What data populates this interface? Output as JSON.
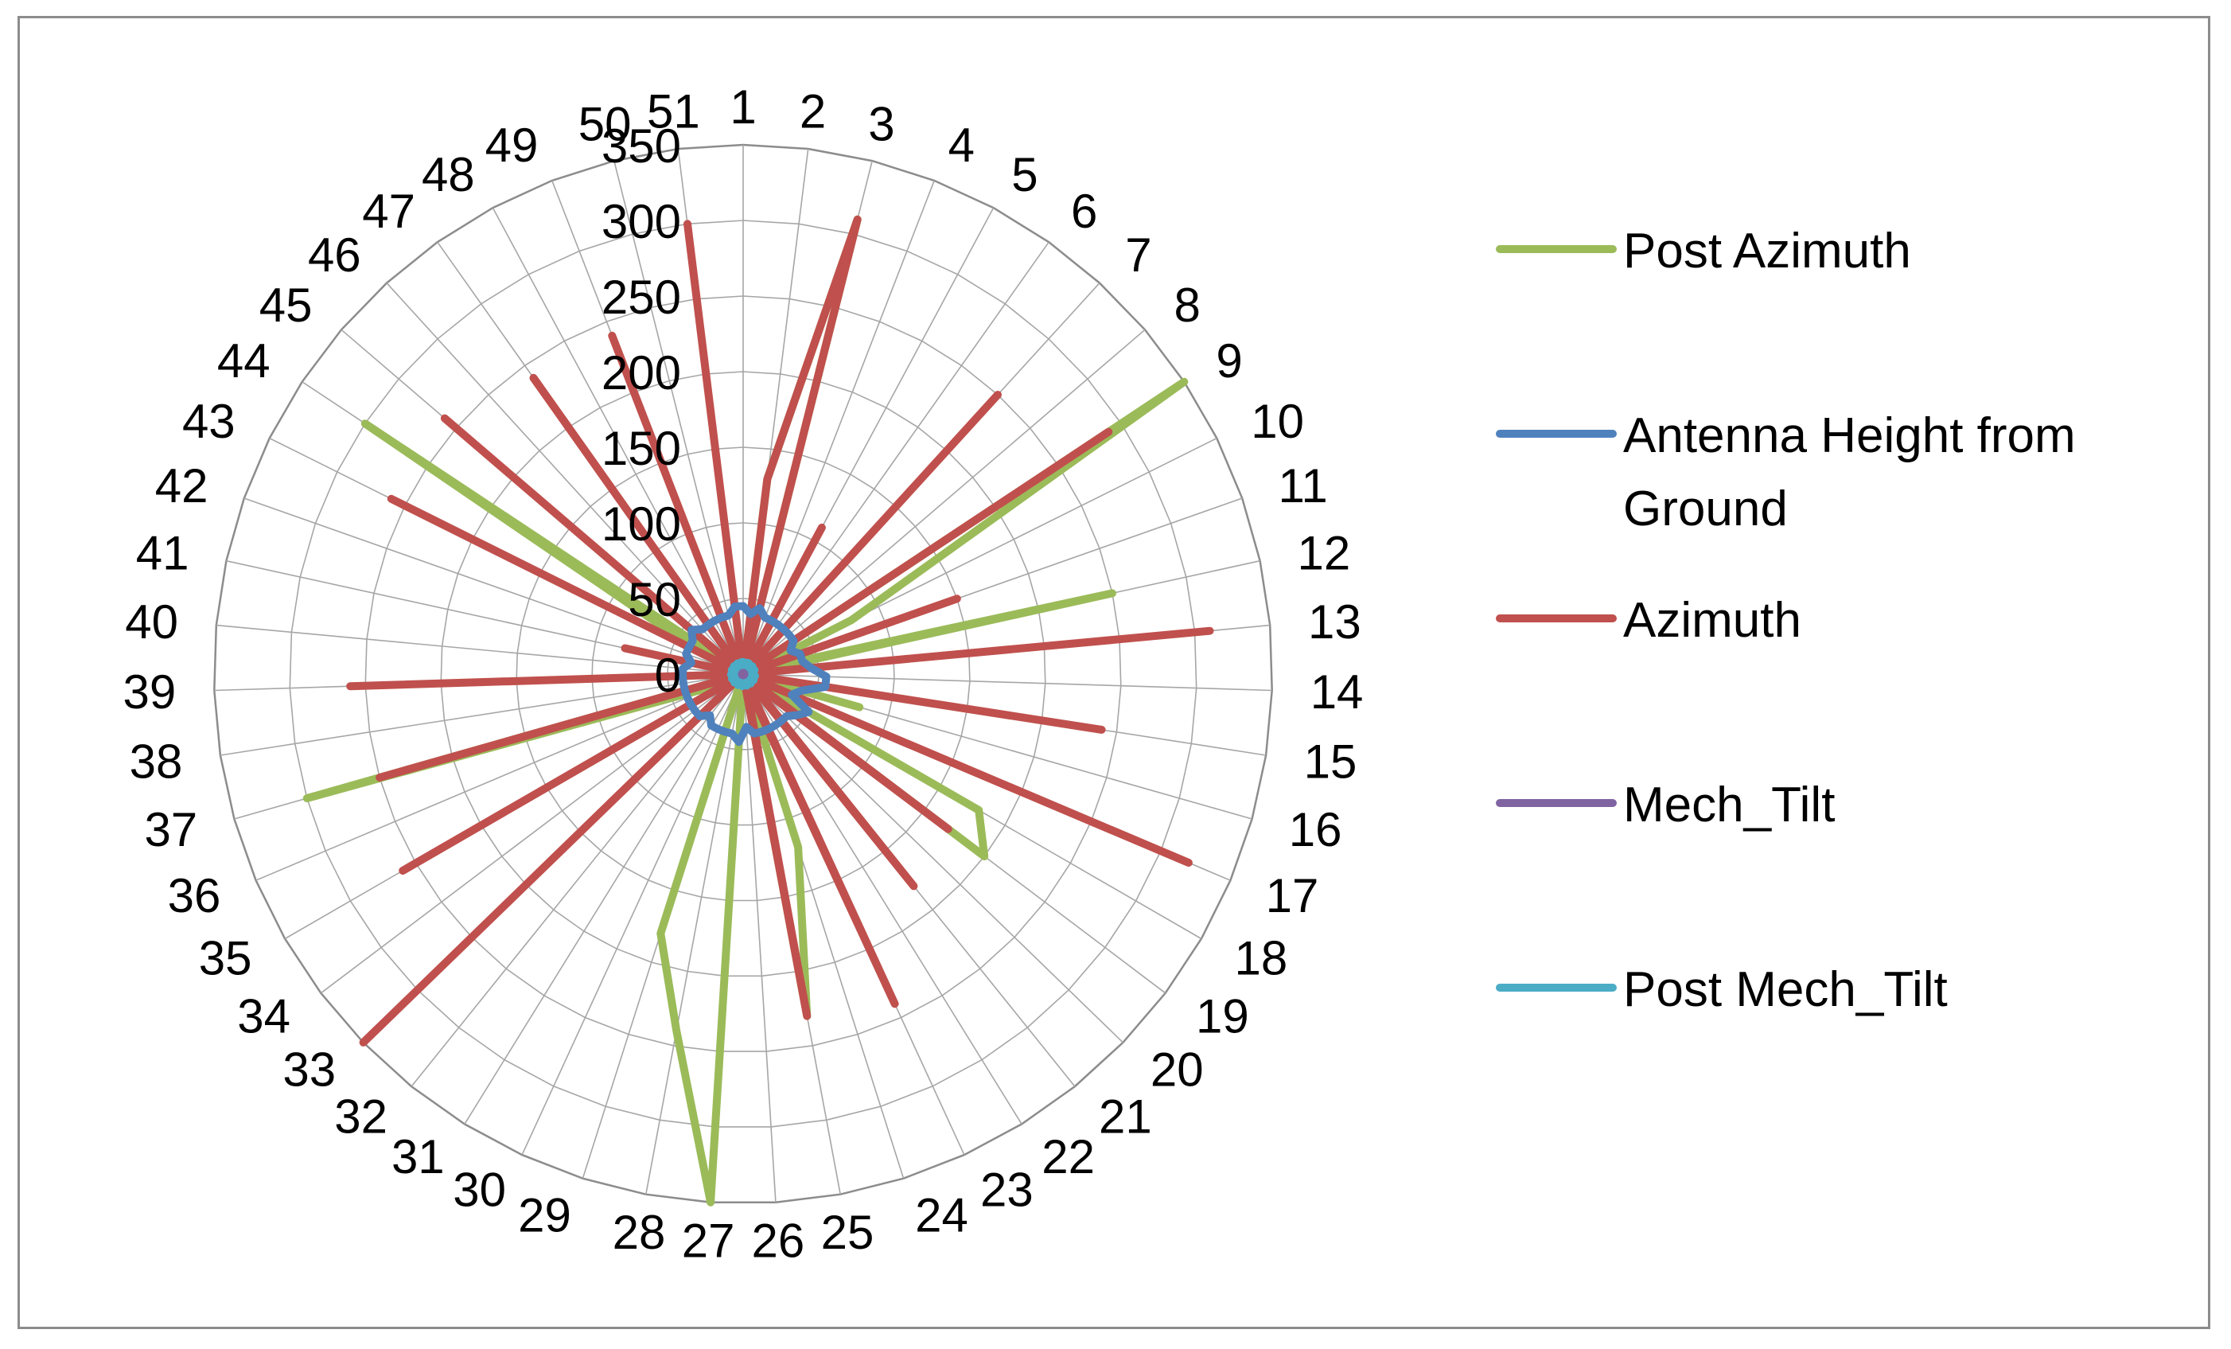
{
  "chart_data": {
    "type": "radar",
    "title": "",
    "categories": [
      "1",
      "2",
      "3",
      "4",
      "5",
      "6",
      "7",
      "8",
      "9",
      "10",
      "11",
      "12",
      "13",
      "14",
      "15",
      "16",
      "17",
      "18",
      "19",
      "20",
      "21",
      "22",
      "23",
      "24",
      "25",
      "26",
      "27",
      "28",
      "29",
      "30",
      "31",
      "32",
      "33",
      "34",
      "35",
      "36",
      "37",
      "38",
      "39",
      "40",
      "41",
      "42",
      "43",
      "44",
      "45",
      "46",
      "47",
      "48",
      "49",
      "50",
      "51"
    ],
    "radial_ticks": [
      0,
      50,
      100,
      150,
      200,
      250,
      300,
      350
    ],
    "rlim": [
      0,
      350
    ],
    "grid": true,
    "legend_position": "right",
    "series": [
      {
        "name": "Post Azimuth",
        "color": "#9bbb59",
        "values": [
          0,
          130,
          310,
          0,
          0,
          0,
          0,
          0,
          350,
          80,
          5,
          250,
          5,
          0,
          0,
          80,
          0,
          180,
          200,
          0,
          0,
          0,
          0,
          120,
          230,
          0,
          350,
          240,
          180,
          0,
          0,
          10,
          0,
          0,
          0,
          20,
          300,
          0,
          0,
          0,
          0,
          0,
          30,
          300,
          0,
          0,
          0,
          0,
          0,
          0,
          0
        ]
      },
      {
        "name": "Antenna Height from Ground",
        "color": "#4f81bd",
        "values": [
          45,
          40,
          45,
          40,
          40,
          40,
          40,
          40,
          40,
          35,
          40,
          40,
          45,
          55,
          55,
          40,
          35,
          50,
          45,
          40,
          40,
          40,
          40,
          40,
          40,
          35,
          45,
          40,
          40,
          40,
          40,
          35,
          40,
          40,
          40,
          40,
          40,
          40,
          40,
          40,
          35,
          40,
          40,
          40,
          45,
          40,
          40,
          40,
          40,
          40,
          45
        ]
      },
      {
        "name": "Azimuth",
        "color": "#c0504d",
        "values": [
          0,
          130,
          310,
          0,
          110,
          0,
          250,
          0,
          290,
          0,
          150,
          0,
          310,
          0,
          240,
          0,
          320,
          0,
          170,
          5,
          180,
          0,
          240,
          5,
          230,
          0,
          0,
          0,
          0,
          0,
          0,
          0,
          350,
          0,
          260,
          0,
          250,
          0,
          260,
          0,
          80,
          0,
          260,
          0,
          260,
          0,
          240,
          0,
          240,
          0,
          300
        ]
      },
      {
        "name": "Mech_Tilt",
        "color": "#8064a2",
        "values": [
          5,
          3,
          4,
          5,
          5,
          3,
          4,
          5,
          4,
          3,
          5,
          4,
          3,
          4,
          5,
          3,
          4,
          5,
          3,
          4,
          5,
          3,
          4,
          5,
          3,
          4,
          5,
          3,
          4,
          5,
          3,
          4,
          5,
          3,
          4,
          5,
          3,
          4,
          5,
          3,
          4,
          5,
          3,
          4,
          5,
          3,
          4,
          5,
          3,
          4,
          5
        ]
      },
      {
        "name": "Post Mech_Tilt",
        "color": "#4bacc6",
        "values": [
          8,
          6,
          7,
          8,
          8,
          6,
          7,
          8,
          7,
          6,
          8,
          7,
          6,
          7,
          8,
          6,
          7,
          8,
          6,
          7,
          8,
          6,
          7,
          8,
          6,
          7,
          8,
          6,
          7,
          8,
          6,
          7,
          8,
          6,
          7,
          8,
          6,
          7,
          8,
          6,
          7,
          8,
          6,
          7,
          8,
          6,
          7,
          8,
          6,
          7,
          8
        ]
      }
    ]
  },
  "legend": {
    "items": [
      {
        "label": "Post Azimuth",
        "color": "#9bbb59"
      },
      {
        "label": "Antenna Height from Ground",
        "color": "#4f81bd"
      },
      {
        "label": "Azimuth",
        "color": "#c0504d"
      },
      {
        "label": "Mech_Tilt",
        "color": "#8064a2"
      },
      {
        "label": "Post Mech_Tilt",
        "color": "#4bacc6"
      }
    ]
  }
}
